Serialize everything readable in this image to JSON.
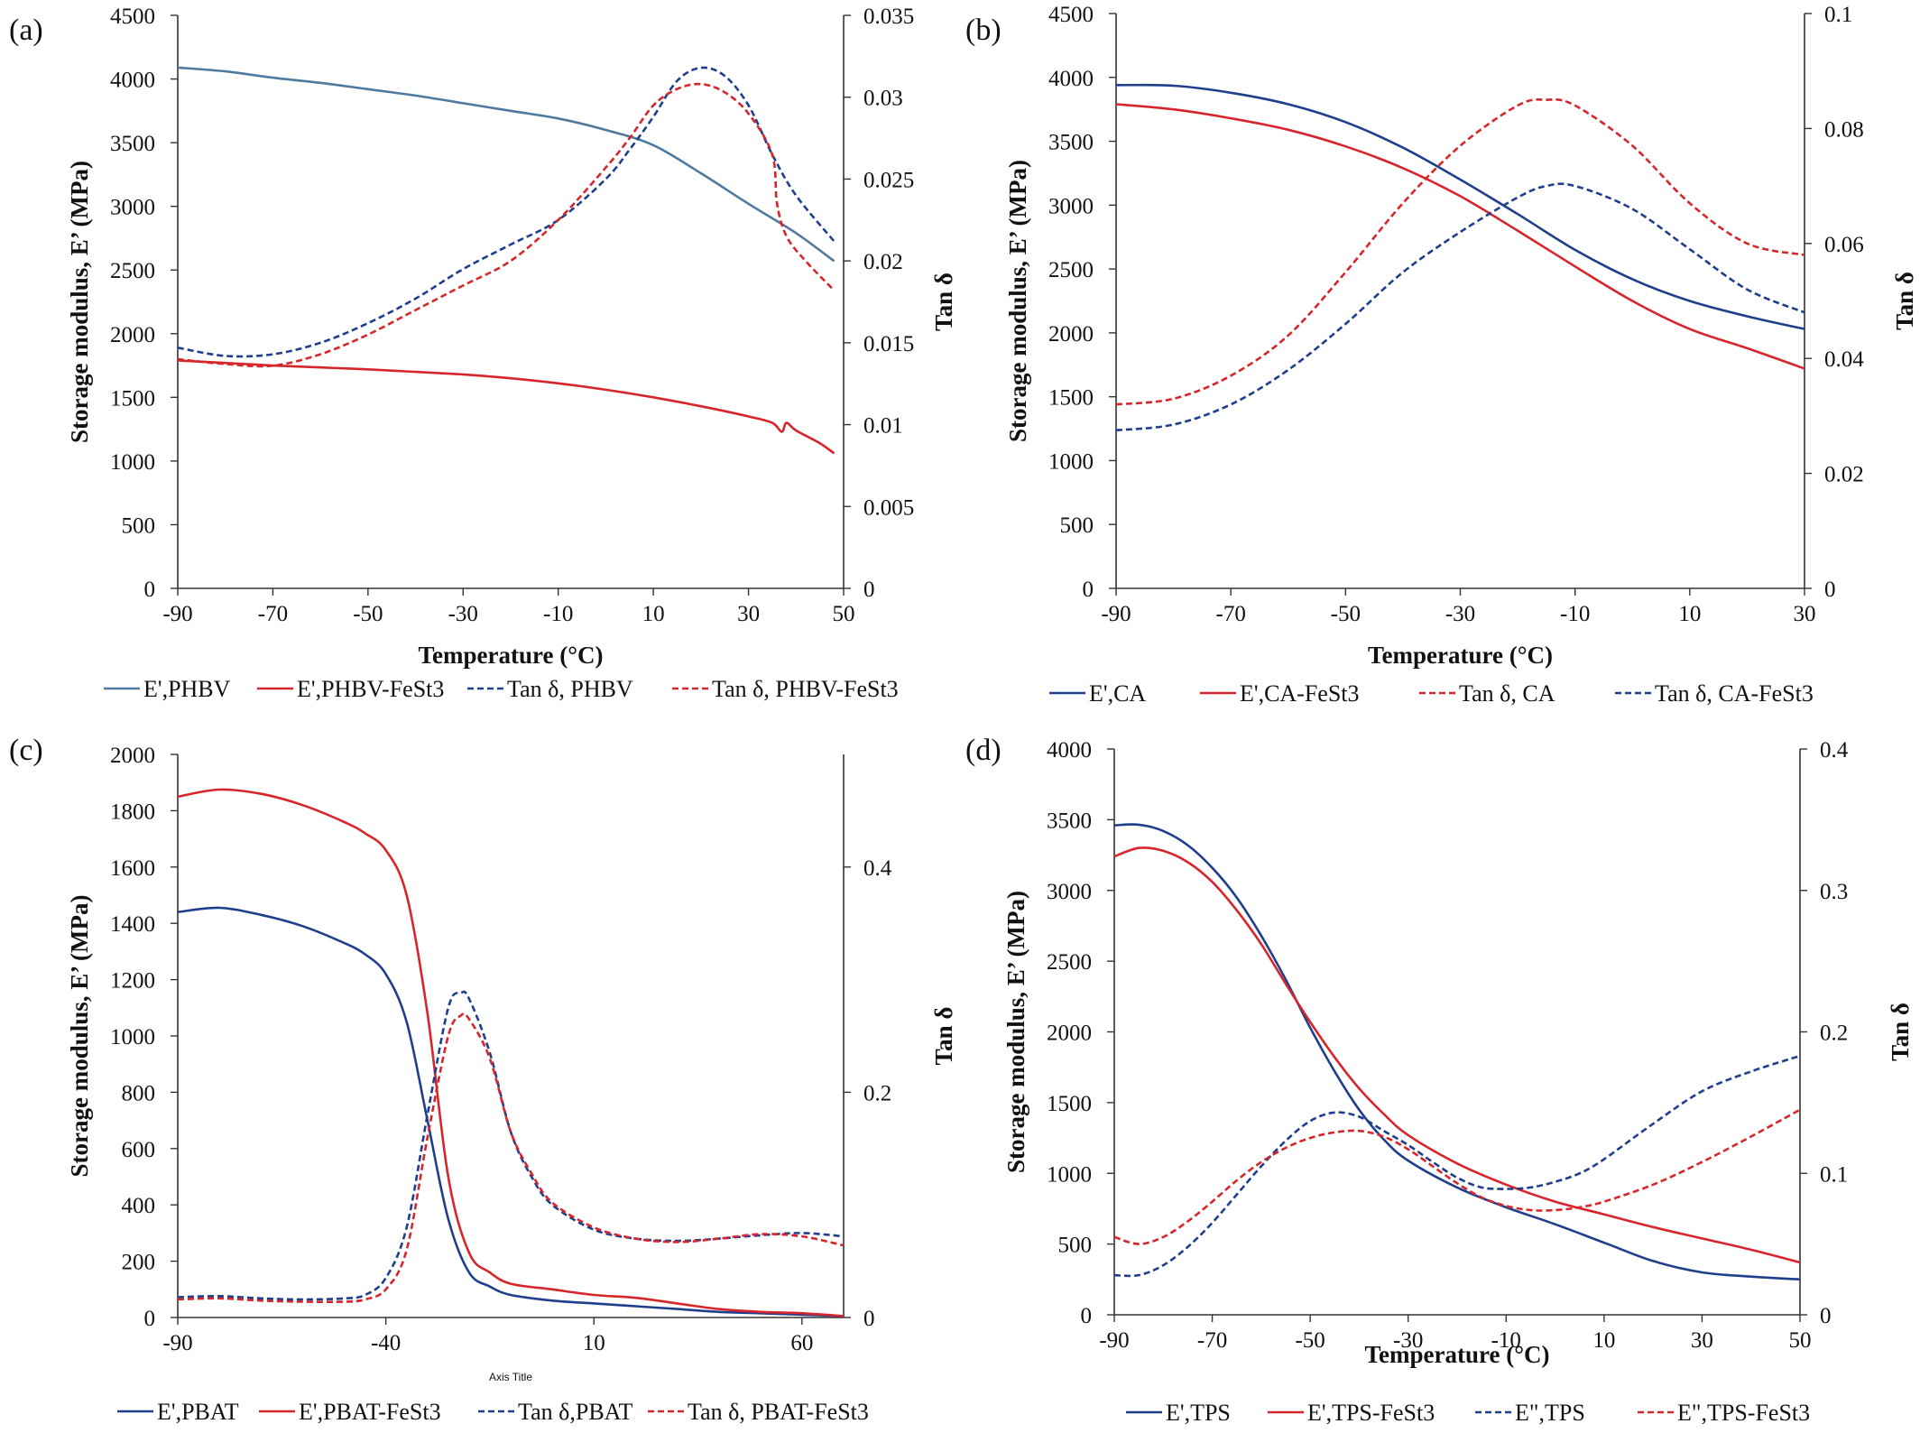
{
  "colors": {
    "blue": "#1f3e8c",
    "steel": "#4f7aa0",
    "red": "#d7262b"
  },
  "chart_data": [
    {
      "panel_label": "(a)",
      "type": "line",
      "xlabel": "Temperature (°C)",
      "ylabel_left": "Storage modulus, E’ (MPa)",
      "ylabel_right": "Tan δ",
      "xlim": [
        -90,
        50
      ],
      "ylim_left": [
        0,
        4500
      ],
      "ylim_right": [
        0,
        0.035
      ],
      "xticks": [
        "-90",
        "-70",
        "-50",
        "-30",
        "-10",
        "10",
        "30",
        "50"
      ],
      "yticks_left": [
        "0",
        "500",
        "1000",
        "1500",
        "2000",
        "2500",
        "3000",
        "3500",
        "4000",
        "4500"
      ],
      "yticks_right": [
        "0",
        "0.005",
        "0.01",
        "0.015",
        "0.02",
        "0.025",
        "0.03",
        "0.035"
      ],
      "series": [
        {
          "name": "E',PHBV",
          "axis": "left",
          "color": "#4f7aa0",
          "dash": false,
          "x": [
            -90,
            -80,
            -70,
            -60,
            -50,
            -40,
            -30,
            -20,
            -10,
            0,
            10,
            20,
            30,
            40,
            48
          ],
          "y": [
            4090,
            4060,
            4010,
            3970,
            3920,
            3870,
            3810,
            3750,
            3690,
            3600,
            3480,
            3260,
            3020,
            2790,
            2570
          ]
        },
        {
          "name": "E',PHBV-FeSt3",
          "axis": "left",
          "color": "#d7262b",
          "dash": false,
          "x": [
            -90,
            -80,
            -70,
            -60,
            -50,
            -40,
            -30,
            -20,
            -10,
            0,
            10,
            20,
            30,
            35,
            37,
            38,
            40,
            45,
            48
          ],
          "y": [
            1790,
            1770,
            1750,
            1735,
            1720,
            1700,
            1680,
            1650,
            1610,
            1560,
            1500,
            1430,
            1350,
            1300,
            1230,
            1300,
            1240,
            1140,
            1060
          ]
        },
        {
          "name": "Tan δ, PHBV",
          "axis": "right",
          "color": "#1f3e8c",
          "dash": true,
          "x": [
            -90,
            -80,
            -70,
            -60,
            -50,
            -40,
            -30,
            -20,
            -10,
            0,
            5,
            10,
            15,
            20,
            25,
            30,
            35,
            40,
            48
          ],
          "y": [
            0.0147,
            0.0142,
            0.0143,
            0.015,
            0.0162,
            0.0177,
            0.0195,
            0.021,
            0.0225,
            0.025,
            0.0268,
            0.0288,
            0.031,
            0.0318,
            0.0313,
            0.0295,
            0.0265,
            0.024,
            0.0212
          ]
        },
        {
          "name": "Tan δ, PHBV-FeSt3",
          "axis": "right",
          "color": "#d7262b",
          "dash": true,
          "x": [
            -90,
            -80,
            -70,
            -60,
            -50,
            -40,
            -30,
            -20,
            -10,
            0,
            5,
            10,
            15,
            20,
            25,
            30,
            35,
            36,
            38,
            42,
            48
          ],
          "y": [
            0.014,
            0.0137,
            0.0136,
            0.0143,
            0.0155,
            0.017,
            0.0185,
            0.02,
            0.0225,
            0.0257,
            0.0275,
            0.0295,
            0.0305,
            0.0308,
            0.0303,
            0.029,
            0.0265,
            0.0235,
            0.0215,
            0.02,
            0.0182
          ]
        }
      ]
    },
    {
      "panel_label": "(b)",
      "type": "line",
      "xlabel": "Temperature (°C)",
      "ylabel_left": "Storage modulus, E’ (MPa)",
      "ylabel_right": "Tan δ",
      "xlim": [
        -90,
        30
      ],
      "ylim_left": [
        0,
        4500
      ],
      "ylim_right": [
        0,
        0.1
      ],
      "xticks": [
        "-90",
        "-70",
        "-50",
        "-30",
        "-10",
        "10",
        "30"
      ],
      "yticks_left": [
        "0",
        "500",
        "1000",
        "1500",
        "2000",
        "2500",
        "3000",
        "3500",
        "4000",
        "4500"
      ],
      "yticks_right": [
        "0",
        "0.02",
        "0.04",
        "0.06",
        "0.08",
        "0.1"
      ],
      "series": [
        {
          "name": "E',CA",
          "axis": "left",
          "color": "#1f3e8c",
          "dash": false,
          "x": [
            -90,
            -80,
            -70,
            -60,
            -50,
            -40,
            -30,
            -20,
            -10,
            0,
            10,
            20,
            30
          ],
          "y": [
            3940,
            3935,
            3880,
            3790,
            3650,
            3450,
            3200,
            2930,
            2650,
            2420,
            2250,
            2130,
            2030
          ]
        },
        {
          "name": "E',CA-FeSt3",
          "axis": "left",
          "color": "#d7262b",
          "dash": false,
          "x": [
            -90,
            -80,
            -70,
            -60,
            -50,
            -40,
            -30,
            -20,
            -10,
            0,
            10,
            20,
            30
          ],
          "y": [
            3790,
            3750,
            3680,
            3590,
            3460,
            3290,
            3070,
            2800,
            2520,
            2250,
            2030,
            1880,
            1720
          ]
        },
        {
          "name": "Tan δ, CA",
          "axis": "right",
          "color": "#d7262b",
          "dash": true,
          "x": [
            -90,
            -80,
            -70,
            -60,
            -50,
            -40,
            -30,
            -20,
            -15,
            -10,
            0,
            10,
            20,
            30
          ],
          "y": [
            0.032,
            0.033,
            0.037,
            0.044,
            0.055,
            0.067,
            0.077,
            0.084,
            0.085,
            0.084,
            0.077,
            0.067,
            0.06,
            0.058
          ]
        },
        {
          "name": "Tan δ, CA-FeSt3",
          "axis": "right",
          "color": "#1f3e8c",
          "dash": true,
          "x": [
            -90,
            -80,
            -70,
            -60,
            -50,
            -40,
            -30,
            -20,
            -15,
            -10,
            0,
            10,
            20,
            30
          ],
          "y": [
            0.0275,
            0.0285,
            0.032,
            0.038,
            0.046,
            0.055,
            0.062,
            0.068,
            0.07,
            0.07,
            0.066,
            0.059,
            0.052,
            0.048
          ]
        }
      ]
    },
    {
      "panel_label": "(c)",
      "type": "line",
      "xlabel": "Axis Title",
      "ylabel_left": "Storage modulus, E’ (MPa)",
      "ylabel_right": "Tan δ",
      "xlim": [
        -90,
        70
      ],
      "ylim_left": [
        0,
        2000
      ],
      "ylim_right": [
        0,
        0.5
      ],
      "xticks": [
        "-90",
        "-40",
        "10",
        "60"
      ],
      "yticks_left": [
        "0",
        "200",
        "400",
        "600",
        "800",
        "1000",
        "1200",
        "1400",
        "1600",
        "1800",
        "2000"
      ],
      "yticks_right": [
        "0",
        "0.2",
        "0.4"
      ],
      "series": [
        {
          "name": "E',PBAT",
          "axis": "left",
          "color": "#1f3e8c",
          "dash": false,
          "x": [
            -90,
            -80,
            -70,
            -60,
            -50,
            -45,
            -40,
            -35,
            -30,
            -25,
            -20,
            -15,
            -10,
            0,
            10,
            20,
            30,
            40,
            50,
            60,
            70
          ],
          "y": [
            1440,
            1455,
            1430,
            1390,
            1330,
            1290,
            1220,
            1050,
            700,
            350,
            160,
            110,
            80,
            60,
            50,
            40,
            30,
            20,
            15,
            10,
            5
          ]
        },
        {
          "name": "E',PBAT-FeSt3",
          "axis": "left",
          "color": "#d7262b",
          "dash": false,
          "x": [
            -90,
            -80,
            -70,
            -60,
            -50,
            -45,
            -40,
            -35,
            -30,
            -25,
            -20,
            -15,
            -10,
            0,
            10,
            20,
            30,
            40,
            50,
            60,
            70
          ],
          "y": [
            1850,
            1875,
            1860,
            1820,
            1760,
            1720,
            1660,
            1500,
            1080,
            500,
            230,
            160,
            120,
            100,
            80,
            70,
            50,
            30,
            20,
            15,
            5
          ]
        },
        {
          "name": "Tan δ,PBAT",
          "axis": "right",
          "color": "#1f3e8c",
          "dash": true,
          "x": [
            -90,
            -80,
            -70,
            -60,
            -50,
            -45,
            -40,
            -35,
            -30,
            -25,
            -22,
            -20,
            -15,
            -10,
            -5,
            0,
            10,
            20,
            30,
            40,
            50,
            60,
            70
          ],
          "y": [
            0.018,
            0.019,
            0.017,
            0.016,
            0.017,
            0.02,
            0.035,
            0.08,
            0.18,
            0.275,
            0.288,
            0.283,
            0.235,
            0.165,
            0.125,
            0.1,
            0.078,
            0.07,
            0.068,
            0.07,
            0.073,
            0.075,
            0.072
          ]
        },
        {
          "name": "Tan δ, PBAT-FeSt3",
          "axis": "right",
          "color": "#d7262b",
          "dash": true,
          "x": [
            -90,
            -80,
            -70,
            -60,
            -50,
            -45,
            -40,
            -35,
            -30,
            -25,
            -22,
            -20,
            -15,
            -10,
            -5,
            0,
            10,
            20,
            30,
            40,
            50,
            60,
            70
          ],
          "y": [
            0.016,
            0.017,
            0.015,
            0.014,
            0.014,
            0.016,
            0.025,
            0.06,
            0.16,
            0.25,
            0.268,
            0.265,
            0.23,
            0.165,
            0.128,
            0.102,
            0.08,
            0.07,
            0.067,
            0.07,
            0.074,
            0.072,
            0.064
          ]
        }
      ]
    },
    {
      "panel_label": "(d)",
      "type": "line",
      "xlabel": "Temperature (°C)",
      "ylabel_left": "Storage modulus, E’ (MPa)",
      "ylabel_right": "Tan δ",
      "xlim": [
        -90,
        50
      ],
      "ylim_left": [
        0,
        4000
      ],
      "ylim_right": [
        0,
        0.4
      ],
      "xticks": [
        "-90",
        "-70",
        "-50",
        "-30",
        "-10",
        "10",
        "30",
        "50"
      ],
      "yticks_left": [
        "0",
        "500",
        "1000",
        "1500",
        "2000",
        "2500",
        "3000",
        "3500",
        "4000"
      ],
      "yticks_right": [
        "0",
        "0.1",
        "0.2",
        "0.3",
        "0.4"
      ],
      "series": [
        {
          "name": "E',TPS",
          "axis": "left",
          "color": "#1f3e8c",
          "dash": false,
          "x": [
            -90,
            -85,
            -80,
            -75,
            -70,
            -65,
            -60,
            -55,
            -50,
            -45,
            -40,
            -35,
            -30,
            -20,
            -10,
            0,
            10,
            20,
            30,
            40,
            50
          ],
          "y": [
            3460,
            3465,
            3420,
            3320,
            3160,
            2950,
            2680,
            2370,
            2030,
            1720,
            1450,
            1240,
            1090,
            900,
            760,
            640,
            510,
            380,
            300,
            270,
            250
          ]
        },
        {
          "name": "E',TPS-FeSt3",
          "axis": "left",
          "color": "#d7262b",
          "dash": false,
          "x": [
            -90,
            -85,
            -80,
            -75,
            -70,
            -65,
            -60,
            -55,
            -50,
            -45,
            -40,
            -35,
            -30,
            -20,
            -10,
            0,
            10,
            20,
            30,
            40,
            50
          ],
          "y": [
            3240,
            3300,
            3280,
            3200,
            3060,
            2860,
            2620,
            2340,
            2070,
            1820,
            1600,
            1420,
            1270,
            1070,
            920,
            800,
            710,
            620,
            540,
            460,
            370
          ]
        },
        {
          "name": "E\",TPS",
          "axis": "right",
          "color": "#1f3e8c",
          "dash": true,
          "x": [
            -90,
            -85,
            -80,
            -75,
            -70,
            -65,
            -60,
            -55,
            -50,
            -45,
            -40,
            -35,
            -30,
            -25,
            -20,
            -15,
            -10,
            -5,
            0,
            5,
            10,
            20,
            30,
            40,
            50
          ],
          "y": [
            0.028,
            0.028,
            0.035,
            0.048,
            0.065,
            0.085,
            0.105,
            0.123,
            0.137,
            0.143,
            0.14,
            0.13,
            0.12,
            0.108,
            0.097,
            0.09,
            0.089,
            0.09,
            0.094,
            0.1,
            0.11,
            0.135,
            0.158,
            0.172,
            0.183
          ]
        },
        {
          "name": "E\",TPS-FeSt3",
          "axis": "right",
          "color": "#d7262b",
          "dash": true,
          "x": [
            -90,
            -85,
            -80,
            -75,
            -70,
            -65,
            -60,
            -55,
            -50,
            -45,
            -40,
            -35,
            -30,
            -25,
            -20,
            -15,
            -10,
            -5,
            0,
            5,
            10,
            20,
            30,
            40,
            50
          ],
          "y": [
            0.055,
            0.05,
            0.055,
            0.066,
            0.08,
            0.095,
            0.108,
            0.118,
            0.125,
            0.129,
            0.13,
            0.126,
            0.117,
            0.105,
            0.093,
            0.083,
            0.077,
            0.074,
            0.074,
            0.076,
            0.08,
            0.092,
            0.108,
            0.126,
            0.145
          ]
        }
      ]
    }
  ]
}
